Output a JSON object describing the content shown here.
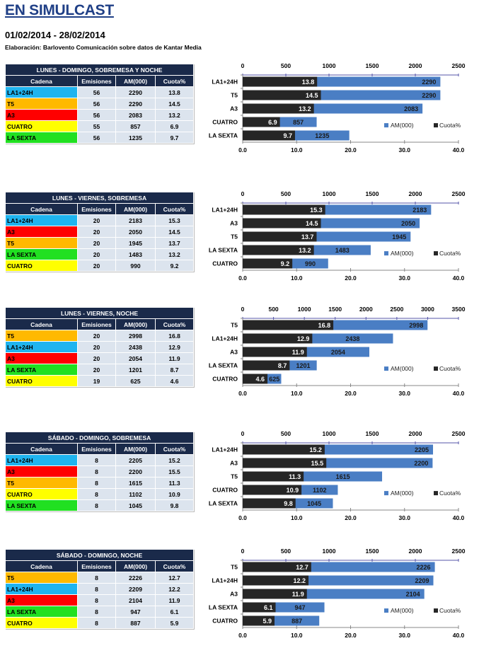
{
  "header": {
    "title": "EN SIMULCAST",
    "date_range": "01/02/2014 - 28/02/2014",
    "credit": "Elaboración:  Barlovento Comunicación  sobre datos de Kantar Media"
  },
  "colors": {
    "table_header_bg": "#1a2a4a",
    "table_cell_bg": "#dce4ee",
    "am_bar": "#4a7ec4",
    "cuota_bar": "#262626",
    "axis_top": "#5555aa",
    "channels": {
      "LA1+24H": "#1fb4ef",
      "T5": "#ffb900",
      "A3": "#ff0000",
      "CUATRO": "#ffff00",
      "LA SEXTA": "#21e021"
    }
  },
  "table_columns": [
    "Cadena",
    "Emisiones",
    "AM(000)",
    "Cuota%"
  ],
  "legend": {
    "am": "AM(000)",
    "cuota": "Cuota%"
  },
  "chart_data": [
    {
      "type": "bar",
      "title": "LUNES - DOMINGO, SOBREMESA Y NOCHE",
      "categories": [
        "LA1+24H",
        "T5",
        "A3",
        "CUATRO",
        "LA SEXTA"
      ],
      "emisiones": [
        56,
        56,
        56,
        55,
        56
      ],
      "series": [
        {
          "name": "AM(000)",
          "axis": "top",
          "values": [
            2290,
            2290,
            2083,
            857,
            1235
          ]
        },
        {
          "name": "Cuota%",
          "axis": "bottom",
          "values": [
            13.8,
            14.5,
            13.2,
            6.9,
            9.7
          ]
        }
      ],
      "top_axis": {
        "range": [
          0,
          2500
        ],
        "ticks": [
          "0",
          "500",
          "1000",
          "1500",
          "2000",
          "2500"
        ]
      },
      "bottom_axis": {
        "range": [
          0,
          40
        ],
        "ticks": [
          "0.0",
          "10.0",
          "20.0",
          "30.0",
          "40.0"
        ]
      },
      "legend_position": "bottom-right"
    },
    {
      "type": "bar",
      "title": "LUNES - VIERNES, SOBREMESA",
      "categories": [
        "LA1+24H",
        "A3",
        "T5",
        "LA SEXTA",
        "CUATRO"
      ],
      "emisiones": [
        20,
        20,
        20,
        20,
        20
      ],
      "series": [
        {
          "name": "AM(000)",
          "axis": "top",
          "values": [
            2183,
            2050,
            1945,
            1483,
            990
          ]
        },
        {
          "name": "Cuota%",
          "axis": "bottom",
          "values": [
            15.3,
            14.5,
            13.7,
            13.2,
            9.2
          ]
        }
      ],
      "top_axis": {
        "range": [
          0,
          2500
        ],
        "ticks": [
          "0",
          "500",
          "1000",
          "1500",
          "2000",
          "2500"
        ]
      },
      "bottom_axis": {
        "range": [
          0,
          40
        ],
        "ticks": [
          "0.0",
          "10.0",
          "20.0",
          "30.0",
          "40.0"
        ]
      },
      "legend_position": "bottom-right"
    },
    {
      "type": "bar",
      "title": "LUNES - VIERNES, NOCHE",
      "categories": [
        "T5",
        "LA1+24H",
        "A3",
        "LA SEXTA",
        "CUATRO"
      ],
      "emisiones": [
        20,
        20,
        20,
        20,
        19
      ],
      "series": [
        {
          "name": "AM(000)",
          "axis": "top",
          "values": [
            2998,
            2438,
            2054,
            1201,
            625
          ]
        },
        {
          "name": "Cuota%",
          "axis": "bottom",
          "values": [
            16.8,
            12.9,
            11.9,
            8.7,
            4.6
          ]
        }
      ],
      "top_axis": {
        "range": [
          0,
          3500
        ],
        "ticks": [
          "0",
          "500",
          "1000",
          "1500",
          "2000",
          "2500",
          "3000",
          "3500"
        ]
      },
      "bottom_axis": {
        "range": [
          0,
          40
        ],
        "ticks": [
          "0.0",
          "10.0",
          "20.0",
          "30.0",
          "40.0"
        ]
      },
      "legend_position": "bottom-right"
    },
    {
      "type": "bar",
      "title": "SÁBADO - DOMINGO, SOBREMESA",
      "categories": [
        "LA1+24H",
        "A3",
        "T5",
        "CUATRO",
        "LA SEXTA"
      ],
      "emisiones": [
        8,
        8,
        8,
        8,
        8
      ],
      "series": [
        {
          "name": "AM(000)",
          "axis": "top",
          "values": [
            2205,
            2200,
            1615,
            1102,
            1045
          ]
        },
        {
          "name": "Cuota%",
          "axis": "bottom",
          "values": [
            15.2,
            15.5,
            11.3,
            10.9,
            9.8
          ]
        }
      ],
      "top_axis": {
        "range": [
          0,
          2500
        ],
        "ticks": [
          "0",
          "500",
          "1000",
          "1500",
          "2000",
          "2500"
        ]
      },
      "bottom_axis": {
        "range": [
          0,
          40
        ],
        "ticks": [
          "0.0",
          "10.0",
          "20.0",
          "30.0",
          "40.0"
        ]
      },
      "legend_position": "bottom-right"
    },
    {
      "type": "bar",
      "title": "SÁBADO - DOMINGO, NOCHE",
      "categories": [
        "T5",
        "LA1+24H",
        "A3",
        "LA SEXTA",
        "CUATRO"
      ],
      "emisiones": [
        8,
        8,
        8,
        8,
        8
      ],
      "series": [
        {
          "name": "AM(000)",
          "axis": "top",
          "values": [
            2226,
            2209,
            2104,
            947,
            887
          ]
        },
        {
          "name": "Cuota%",
          "axis": "bottom",
          "values": [
            12.7,
            12.2,
            11.9,
            6.1,
            5.9
          ]
        }
      ],
      "top_axis": {
        "range": [
          0,
          2500
        ],
        "ticks": [
          "0",
          "500",
          "1000",
          "1500",
          "2000",
          "2500"
        ]
      },
      "bottom_axis": {
        "range": [
          0,
          40
        ],
        "ticks": [
          "0.0",
          "10.0",
          "20.0",
          "30.0",
          "40.0"
        ]
      },
      "legend_position": "bottom-right"
    }
  ]
}
